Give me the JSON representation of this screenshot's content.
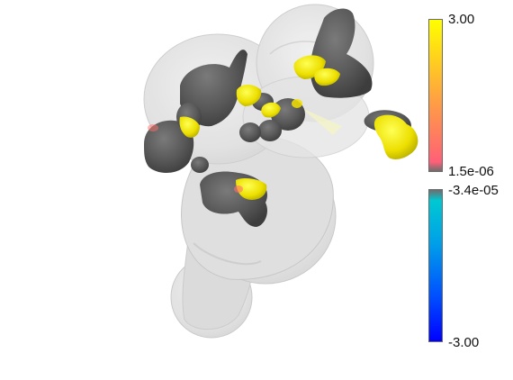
{
  "colorbar_positive": {
    "max_label": "3.00",
    "min_label": "1.5e-06",
    "colors": [
      "#ffff00",
      "#ff9d45",
      "#ff5f78",
      "#6e6e6e"
    ]
  },
  "colorbar_negative": {
    "max_label": "-3.4e-05",
    "min_label": "-3.00",
    "colors": [
      "#6e6e6e",
      "#00c8d2",
      "#0050ff",
      "#0000ff"
    ]
  },
  "render": {
    "glass_color": "#d9d9d9",
    "blob_color": "#5a5a5a",
    "highlight_color": "#f2e000"
  }
}
